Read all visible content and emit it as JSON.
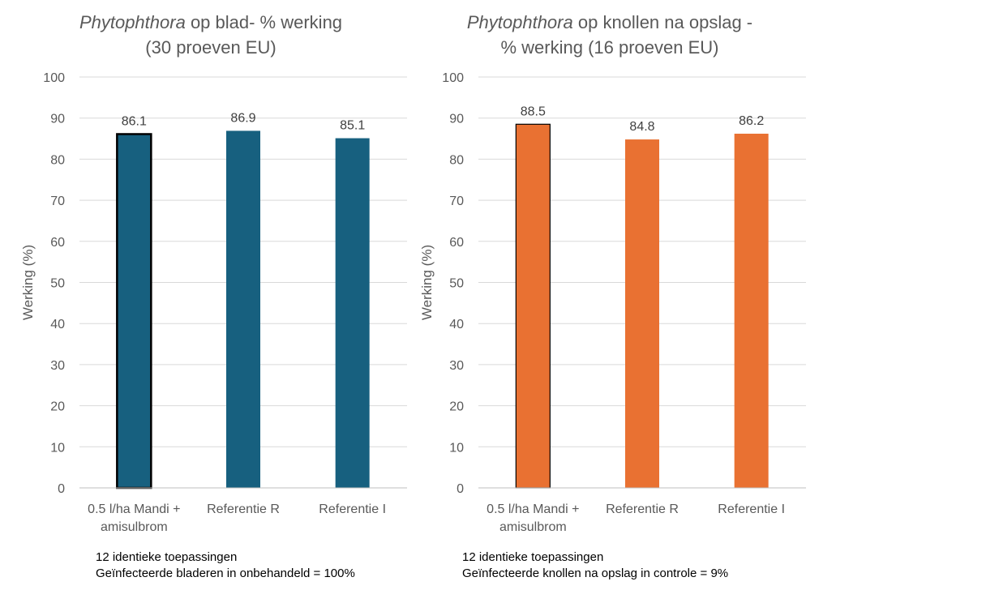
{
  "chart_data": [
    {
      "type": "bar",
      "title_italic": "Phytophthora",
      "title_rest_line1": "op blad- % werking",
      "title_line2": "(30 proeven EU)",
      "ylabel": "Werking (%)",
      "ylim": [
        0,
        100
      ],
      "yticks": [
        "0",
        "10",
        "20",
        "30",
        "40",
        "50",
        "60",
        "70",
        "80",
        "90",
        "100"
      ],
      "categories": [
        [
          "0.5 l/ha Mandi +",
          "amisulbrom"
        ],
        [
          "Referentie R"
        ],
        [
          "Referentie I"
        ]
      ],
      "values": [
        86.1,
        86.9,
        85.1
      ],
      "data_labels": [
        "86.1",
        "86.9",
        "85.1"
      ],
      "bar_color": "#17607f",
      "highlight_color": "#000000",
      "grid": true,
      "notes": [
        "12 identieke toepassingen",
        "Geïnfecteerde bladeren  in onbehandeld = 100%"
      ]
    },
    {
      "type": "bar",
      "title_italic": "Phytophthora",
      "title_rest_line1": "op knollen na opslag -",
      "title_line2": "% werking (16 proeven EU)",
      "ylabel": "Werking (%)",
      "ylim": [
        0,
        100
      ],
      "yticks": [
        "0",
        "10",
        "20",
        "30",
        "40",
        "50",
        "60",
        "70",
        "80",
        "90",
        "100"
      ],
      "categories": [
        [
          "0.5 l/ha Mandi +",
          "amisulbrom"
        ],
        [
          "Referentie R"
        ],
        [
          "Referentie I"
        ]
      ],
      "values": [
        88.5,
        84.8,
        86.2
      ],
      "data_labels": [
        "88.5",
        "84.8",
        "86.2"
      ],
      "bar_color": "#e97132",
      "highlight_color": "#000000",
      "grid": true,
      "notes": [
        "12 identieke toepassingen",
        "Geïnfecteerde knollen na opslag in controle = 9%"
      ]
    }
  ]
}
